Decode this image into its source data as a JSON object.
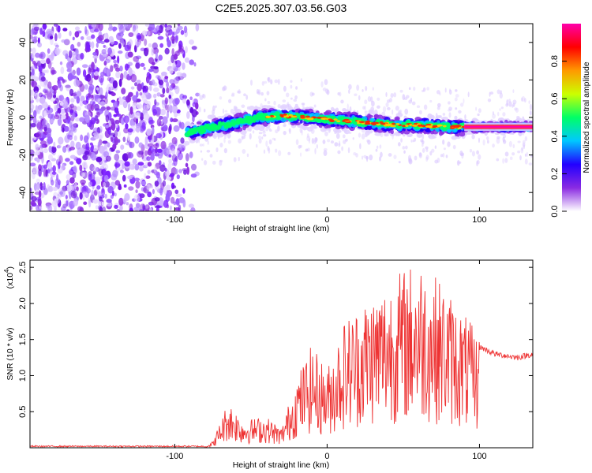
{
  "figure_title": "C2E5.2025.307.03.56.G03",
  "chart_data": [
    {
      "type": "heatmap",
      "title": "C2E5.2025.307.03.56.G03",
      "xlabel": "Height of straight line (km)",
      "ylabel": "Frequency (Hz)",
      "xlim": [
        -195,
        135
      ],
      "ylim": [
        -50,
        50
      ],
      "x_ticks": [
        -100,
        0,
        100
      ],
      "y_ticks": [
        -40,
        -20,
        0,
        20,
        40
      ],
      "colorbar": {
        "label": "Normalized spectral amplitude",
        "range": [
          0,
          1
        ],
        "ticks": [
          0.0,
          0.2,
          0.4,
          0.6,
          0.8
        ],
        "tick_labels": [
          "0.0",
          "0.2",
          "0.4",
          "0.6",
          "0.8"
        ],
        "colormap": [
          "#ffffff",
          "#8a2be2",
          "#2200ff",
          "#00c8ff",
          "#00ff66",
          "#ccff00",
          "#ff9900",
          "#ff0000",
          "#ff00aa"
        ]
      },
      "band_center_hz": [
        {
          "x": -90,
          "y": -8
        },
        {
          "x": -75,
          "y": -5
        },
        {
          "x": -60,
          "y": -3
        },
        {
          "x": -45,
          "y": 0
        },
        {
          "x": -30,
          "y": 1
        },
        {
          "x": -15,
          "y": 0
        },
        {
          "x": 0,
          "y": -1
        },
        {
          "x": 15,
          "y": -2
        },
        {
          "x": 30,
          "y": -3
        },
        {
          "x": 45,
          "y": -4
        },
        {
          "x": 60,
          "y": -4
        },
        {
          "x": 75,
          "y": -5
        },
        {
          "x": 90,
          "y": -5
        },
        {
          "x": 105,
          "y": -5
        },
        {
          "x": 120,
          "y": -5
        },
        {
          "x": 135,
          "y": -5
        }
      ],
      "noise_region_x": [
        -195,
        -85
      ]
    },
    {
      "type": "line",
      "xlabel": "Height of straight line (km)",
      "ylabel": "SNR (10 * v/v)",
      "y_multiplier_label": "(x10",
      "y_multiplier_exponent": "4",
      "xlim": [
        -195,
        135
      ],
      "ylim": [
        0,
        2.6
      ],
      "x_ticks": [
        -100,
        0,
        100
      ],
      "y_ticks": [
        0.5,
        1.0,
        1.5,
        2.0,
        2.5
      ],
      "color": "#ee3333",
      "envelope": [
        {
          "x": -195,
          "y": 0.02
        },
        {
          "x": -80,
          "y": 0.02
        },
        {
          "x": -75,
          "y": 0.08
        },
        {
          "x": -65,
          "y": 0.6
        },
        {
          "x": -55,
          "y": 0.35
        },
        {
          "x": -40,
          "y": 0.4
        },
        {
          "x": -30,
          "y": 0.25
        },
        {
          "x": -20,
          "y": 0.9
        },
        {
          "x": -10,
          "y": 1.3
        },
        {
          "x": 0,
          "y": 1.0
        },
        {
          "x": 10,
          "y": 1.6
        },
        {
          "x": 25,
          "y": 1.9
        },
        {
          "x": 45,
          "y": 2.2
        },
        {
          "x": 60,
          "y": 2.4
        },
        {
          "x": 75,
          "y": 2.1
        },
        {
          "x": 90,
          "y": 1.7
        },
        {
          "x": 100,
          "y": 1.4
        },
        {
          "x": 110,
          "y": 1.3
        },
        {
          "x": 125,
          "y": 1.25
        },
        {
          "x": 135,
          "y": 1.3
        }
      ]
    }
  ]
}
